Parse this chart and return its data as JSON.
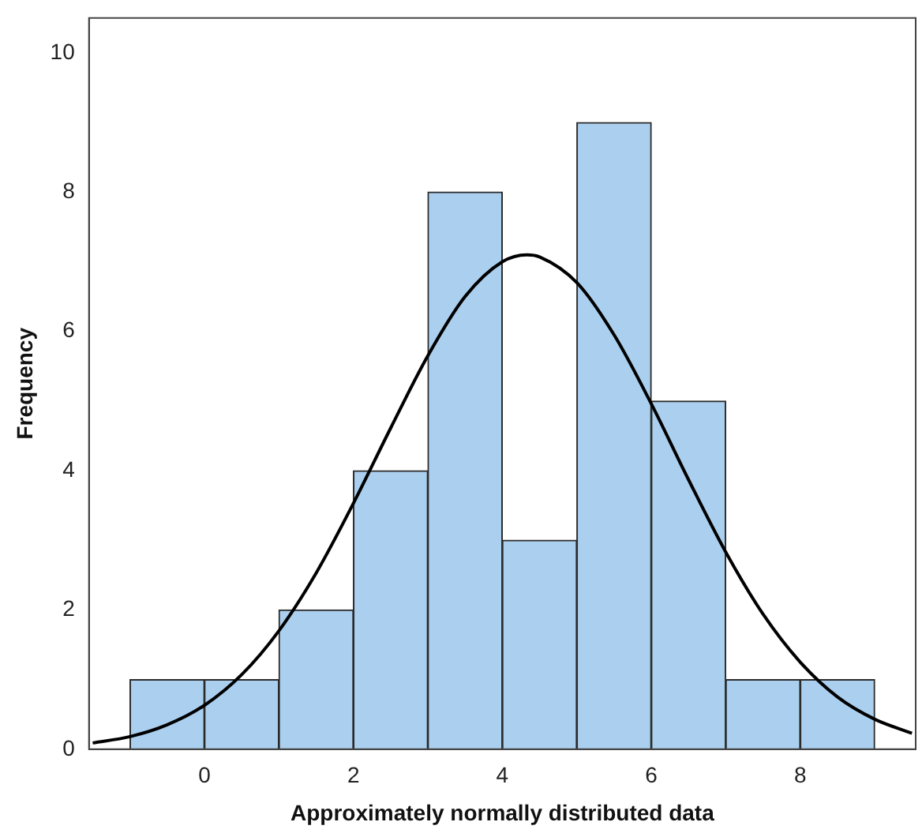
{
  "chart_data": {
    "type": "histogram",
    "xlabel": "Approximately normally distributed data",
    "ylabel": "Frequency",
    "series": [
      {
        "type": "histogram",
        "bins": [
          -1,
          0,
          1,
          2,
          3,
          4,
          5,
          6,
          7,
          8,
          9
        ],
        "values": [
          1,
          1,
          2,
          4,
          8,
          3,
          9,
          5,
          1,
          1
        ],
        "color": "#abd0ef"
      },
      {
        "type": "line",
        "x": [
          -1.5,
          -1,
          -0.5,
          0,
          0.5,
          1,
          1.5,
          2,
          2.5,
          3,
          3.5,
          4,
          4.33,
          4.5,
          5,
          5.5,
          6,
          6.5,
          7,
          7.5,
          8,
          8.5,
          9,
          9.5
        ],
        "values": [
          0.09,
          0.18,
          0.35,
          0.63,
          1.07,
          1.7,
          2.53,
          3.53,
          4.61,
          5.65,
          6.5,
          7.0,
          7.1,
          7.07,
          6.7,
          5.95,
          4.96,
          3.87,
          2.83,
          1.94,
          1.25,
          0.75,
          0.43,
          0.23
        ],
        "color": "#000000"
      }
    ],
    "xlim": [
      -1.55,
      9.55
    ],
    "ylim": [
      0,
      10.5
    ],
    "xticks": [
      0,
      2,
      4,
      6,
      8
    ],
    "yticks": [
      0,
      2,
      4,
      6,
      8,
      10
    ],
    "grid": false,
    "legend": false
  }
}
